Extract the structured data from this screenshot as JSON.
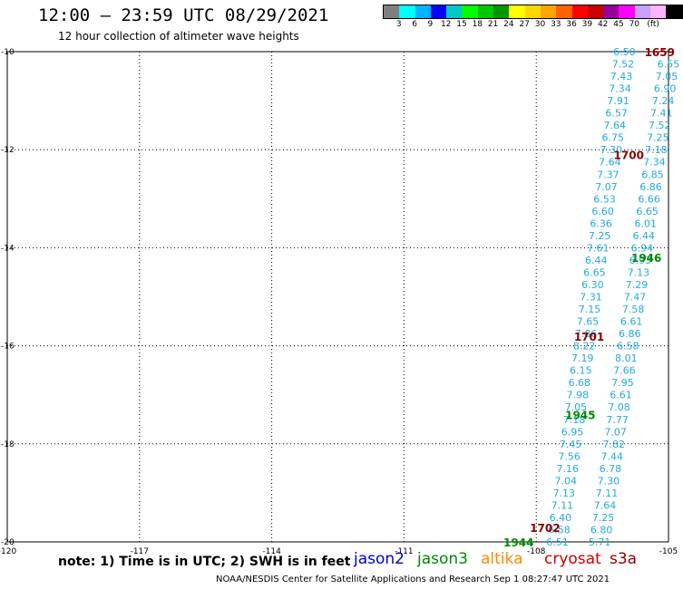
{
  "header": {
    "title": "12:00 – 23:59 UTC 08/29/2021",
    "subtitle": "12 hour collection of altimeter wave heights"
  },
  "legend": {
    "unit": "(ft)",
    "colors": [
      "#7f7f7f",
      "#00ffff",
      "#00b4ff",
      "#0000ff",
      "#00c8c8",
      "#00ff00",
      "#00c800",
      "#009600",
      "#ffff00",
      "#ffd700",
      "#ffa500",
      "#ff6400",
      "#ff0000",
      "#c80000",
      "#960096",
      "#ff00ff",
      "#c8a0ff",
      "#ffb4ff",
      "#000000"
    ],
    "labels": [
      "3",
      "6",
      "9",
      "12",
      "15",
      "18",
      "21",
      "24",
      "27",
      "30",
      "33",
      "36",
      "39",
      "42",
      "45",
      "70"
    ]
  },
  "footer": {
    "note": "note: 1) Time is in UTC; 2) SWH is in feet",
    "credit": "NOAA/NESDIS Center for Satellite Applications and Research   Sep  1 08:27:47 UTC 2021"
  },
  "satellites": [
    {
      "name": "jason2",
      "color": "#0000cc"
    },
    {
      "name": "jason3",
      "color": "#008800"
    },
    {
      "name": "altika",
      "color": "#ff8800"
    },
    {
      "name": "cryosat",
      "color": "#cc0000"
    },
    {
      "name": "s3a",
      "color": "#880000"
    }
  ],
  "chart_data": {
    "type": "scatter",
    "title": "12:00 – 23:59 UTC 08/29/2021",
    "subtitle": "12 hour collection of altimeter wave heights",
    "xlim": [
      -120,
      -105
    ],
    "ylim": [
      -20,
      -10
    ],
    "xticks": [
      -120,
      -117,
      -114,
      -111,
      -108,
      -105
    ],
    "yticks": [
      -10,
      -12,
      -14,
      -16,
      -18,
      -20
    ],
    "xtick_labels": [
      "-120",
      "-117",
      "-114",
      "-111",
      "-108",
      "-105"
    ],
    "ytick_labels": [
      "-10",
      "-12",
      "-14",
      "-16",
      "-18",
      "-20"
    ],
    "grid": true,
    "point_color": "#22aadd",
    "tracks": [
      {
        "name": "track-a",
        "points": [
          {
            "x": -106.0,
            "y": -10.0,
            "v": "6.50"
          },
          {
            "x": -106.03,
            "y": -10.25,
            "v": "7.52"
          },
          {
            "x": -106.07,
            "y": -10.5,
            "v": "7.43"
          },
          {
            "x": -106.1,
            "y": -10.75,
            "v": "7.34"
          },
          {
            "x": -106.14,
            "y": -11.0,
            "v": "7.91"
          },
          {
            "x": -106.18,
            "y": -11.25,
            "v": "6.57"
          },
          {
            "x": -106.22,
            "y": -11.5,
            "v": "7.64"
          },
          {
            "x": -106.26,
            "y": -11.75,
            "v": "6.75"
          },
          {
            "x": -106.3,
            "y": -12.0,
            "v": "7.30"
          },
          {
            "x": -106.33,
            "y": -12.25,
            "v": "7.64"
          },
          {
            "x": -106.37,
            "y": -12.5,
            "v": "7.37"
          },
          {
            "x": -106.41,
            "y": -12.75,
            "v": "7.07"
          },
          {
            "x": -106.45,
            "y": -13.0,
            "v": "6.53"
          },
          {
            "x": -106.49,
            "y": -13.25,
            "v": "6.60"
          },
          {
            "x": -106.53,
            "y": -13.5,
            "v": "6.36"
          },
          {
            "x": -106.56,
            "y": -13.75,
            "v": "7.25"
          },
          {
            "x": -106.6,
            "y": -14.0,
            "v": "7.61"
          },
          {
            "x": -106.64,
            "y": -14.25,
            "v": "6.44"
          },
          {
            "x": -106.68,
            "y": -14.5,
            "v": "6.65"
          },
          {
            "x": -106.72,
            "y": -14.75,
            "v": "6.30"
          },
          {
            "x": -106.76,
            "y": -15.0,
            "v": "7.31"
          },
          {
            "x": -106.79,
            "y": -15.25,
            "v": "7.15"
          },
          {
            "x": -106.83,
            "y": -15.5,
            "v": "7.65"
          },
          {
            "x": -106.87,
            "y": -15.75,
            "v": "7.86"
          },
          {
            "x": -106.91,
            "y": -16.0,
            "v": "8.22"
          },
          {
            "x": -106.95,
            "y": -16.25,
            "v": "7.19"
          },
          {
            "x": -106.99,
            "y": -16.5,
            "v": "6.15"
          },
          {
            "x": -107.02,
            "y": -16.75,
            "v": "6.68"
          },
          {
            "x": -107.06,
            "y": -17.0,
            "v": "7.98"
          },
          {
            "x": -107.1,
            "y": -17.25,
            "v": "7.05"
          },
          {
            "x": -107.14,
            "y": -17.5,
            "v": "7.18"
          },
          {
            "x": -107.18,
            "y": -17.75,
            "v": "6.95"
          },
          {
            "x": -107.22,
            "y": -18.0,
            "v": "7.45"
          },
          {
            "x": -107.25,
            "y": -18.25,
            "v": "7.56"
          },
          {
            "x": -107.29,
            "y": -18.5,
            "v": "7.16"
          },
          {
            "x": -107.33,
            "y": -18.75,
            "v": "7.04"
          },
          {
            "x": -107.37,
            "y": -19.0,
            "v": "7.13"
          },
          {
            "x": -107.41,
            "y": -19.25,
            "v": "7.11"
          },
          {
            "x": -107.45,
            "y": -19.5,
            "v": "6.40"
          },
          {
            "x": -107.48,
            "y": -19.75,
            "v": "6.58"
          },
          {
            "x": -107.52,
            "y": -20.0,
            "v": "6.51"
          }
        ]
      },
      {
        "name": "track-b",
        "points": [
          {
            "x": -105.0,
            "y": -10.25,
            "v": "6.55"
          },
          {
            "x": -105.04,
            "y": -10.5,
            "v": "7.05"
          },
          {
            "x": -105.08,
            "y": -10.75,
            "v": "6.90"
          },
          {
            "x": -105.12,
            "y": -11.0,
            "v": "7.24"
          },
          {
            "x": -105.16,
            "y": -11.25,
            "v": "7.41"
          },
          {
            "x": -105.2,
            "y": -11.5,
            "v": "7.52"
          },
          {
            "x": -105.24,
            "y": -11.75,
            "v": "7.25"
          },
          {
            "x": -105.28,
            "y": -12.0,
            "v": "7.18"
          },
          {
            "x": -105.32,
            "y": -12.25,
            "v": "7.34"
          },
          {
            "x": -105.36,
            "y": -12.5,
            "v": "6.85"
          },
          {
            "x": -105.4,
            "y": -12.75,
            "v": "6.86"
          },
          {
            "x": -105.44,
            "y": -13.0,
            "v": "6.66"
          },
          {
            "x": -105.48,
            "y": -13.25,
            "v": "6.65"
          },
          {
            "x": -105.52,
            "y": -13.5,
            "v": "6.01"
          },
          {
            "x": -105.56,
            "y": -13.75,
            "v": "6.44"
          },
          {
            "x": -105.6,
            "y": -14.0,
            "v": "6.94"
          },
          {
            "x": -105.64,
            "y": -14.25,
            "v": "6.93"
          },
          {
            "x": -105.68,
            "y": -14.5,
            "v": "7.13"
          },
          {
            "x": -105.72,
            "y": -14.75,
            "v": "7.29"
          },
          {
            "x": -105.76,
            "y": -15.0,
            "v": "7.47"
          },
          {
            "x": -105.8,
            "y": -15.25,
            "v": "7.58"
          },
          {
            "x": -105.84,
            "y": -15.5,
            "v": "6.61"
          },
          {
            "x": -105.88,
            "y": -15.75,
            "v": "6.86"
          },
          {
            "x": -105.92,
            "y": -16.0,
            "v": "6.58"
          },
          {
            "x": -105.96,
            "y": -16.25,
            "v": "8.01"
          },
          {
            "x": -106.0,
            "y": -16.5,
            "v": "7.66"
          },
          {
            "x": -106.04,
            "y": -16.75,
            "v": "7.95"
          },
          {
            "x": -106.08,
            "y": -17.0,
            "v": "6.61"
          },
          {
            "x": -106.12,
            "y": -17.25,
            "v": "7.08"
          },
          {
            "x": -106.16,
            "y": -17.5,
            "v": "7.77"
          },
          {
            "x": -106.2,
            "y": -17.75,
            "v": "7.07"
          },
          {
            "x": -106.24,
            "y": -18.0,
            "v": "7.82"
          },
          {
            "x": -106.28,
            "y": -18.25,
            "v": "7.44"
          },
          {
            "x": -106.32,
            "y": -18.5,
            "v": "6.78"
          },
          {
            "x": -106.36,
            "y": -18.75,
            "v": "7.30"
          },
          {
            "x": -106.4,
            "y": -19.0,
            "v": "7.11"
          },
          {
            "x": -106.44,
            "y": -19.25,
            "v": "7.64"
          },
          {
            "x": -106.48,
            "y": -19.5,
            "v": "7.25"
          },
          {
            "x": -106.52,
            "y": -19.75,
            "v": "6.80"
          },
          {
            "x": -106.56,
            "y": -20.0,
            "v": "5.71"
          }
        ]
      }
    ],
    "time_labels": [
      {
        "text": "1659",
        "x": -105.2,
        "y": -10.0,
        "color": "#880000"
      },
      {
        "text": "1700",
        "x": -105.9,
        "y": -12.1,
        "color": "#880000"
      },
      {
        "text": "1946",
        "x": -105.5,
        "y": -14.2,
        "color": "#008800"
      },
      {
        "text": "1701",
        "x": -106.8,
        "y": -15.8,
        "color": "#880000"
      },
      {
        "text": "1945",
        "x": -107.0,
        "y": -17.4,
        "color": "#008800"
      },
      {
        "text": "1702",
        "x": -107.8,
        "y": -19.7,
        "color": "#880000"
      },
      {
        "text": "1944",
        "x": -108.4,
        "y": -20.0,
        "color": "#008800"
      }
    ]
  }
}
